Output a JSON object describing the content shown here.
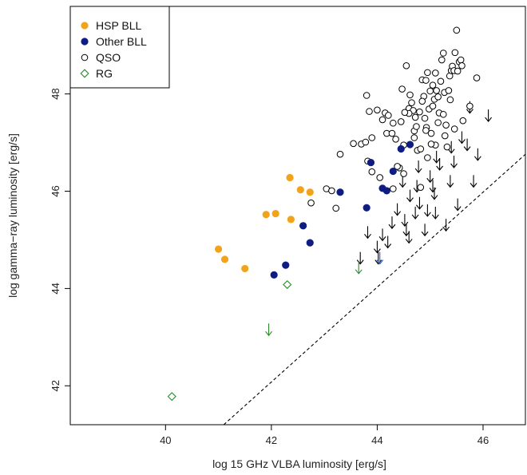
{
  "chart_data": {
    "type": "scatter",
    "xlabel": "log 15 GHz VLBA luminosity [erg/s]",
    "ylabel": "log gamma−ray luminosity [erg/s]",
    "xlim": [
      38.2,
      46.8
    ],
    "ylim": [
      41.2,
      49.8
    ],
    "xticks": [
      40,
      42,
      44,
      46
    ],
    "yticks": [
      42,
      44,
      46,
      48
    ],
    "grid": false,
    "legend_position": "top-left",
    "colors": {
      "hsp": "#f2a31b",
      "other": "#0f1c82",
      "qso": "#000000",
      "rg": "#2b8a2b",
      "dashed": "#000000"
    },
    "legend": [
      {
        "label": "HSP BLL",
        "marker": "filled-circle",
        "color": "#f2a31b"
      },
      {
        "label": "Other BLL",
        "marker": "filled-circle",
        "color": "#0f1c82"
      },
      {
        "label": "QSO",
        "marker": "open-circle",
        "color": "#000000"
      },
      {
        "label": "RG",
        "marker": "open-diamond",
        "color": "#2b8a2b"
      }
    ],
    "series": [
      {
        "name": "HSP BLL",
        "marker": "filled-circle",
        "color": "#f2a31b",
        "points": [
          [
            41.0,
            44.81
          ],
          [
            41.12,
            44.6
          ],
          [
            41.5,
            44.41
          ],
          [
            41.9,
            45.52
          ],
          [
            42.08,
            45.54
          ],
          [
            42.35,
            46.28
          ],
          [
            42.55,
            46.03
          ],
          [
            42.73,
            45.98
          ],
          [
            42.37,
            45.42
          ]
        ]
      },
      {
        "name": "Other BLL",
        "marker": "filled-circle",
        "color": "#0f1c82",
        "points": [
          [
            42.05,
            44.28
          ],
          [
            42.27,
            44.48
          ],
          [
            42.6,
            45.29
          ],
          [
            42.73,
            44.94
          ],
          [
            43.3,
            45.98
          ],
          [
            43.8,
            45.66
          ],
          [
            43.88,
            46.59
          ],
          [
            44.1,
            46.06
          ],
          [
            44.18,
            46.01
          ],
          [
            44.3,
            46.41
          ],
          [
            44.45,
            46.87
          ],
          [
            44.62,
            46.96
          ]
        ]
      },
      {
        "name": "QSO",
        "marker": "open-circle",
        "color": "#000000",
        "points": [
          [
            42.75,
            45.76
          ],
          [
            43.04,
            46.05
          ],
          [
            43.14,
            46.01
          ],
          [
            43.22,
            45.65
          ],
          [
            43.3,
            46.76
          ],
          [
            43.55,
            46.98
          ],
          [
            43.7,
            46.97
          ],
          [
            43.78,
            47.01
          ],
          [
            43.8,
            47.97
          ],
          [
            43.82,
            46.62
          ],
          [
            43.85,
            47.64
          ],
          [
            43.9,
            46.4
          ],
          [
            44.0,
            47.67
          ],
          [
            44.05,
            46.28
          ],
          [
            44.1,
            47.47
          ],
          [
            44.15,
            47.61
          ],
          [
            44.18,
            47.19
          ],
          [
            44.21,
            47.56
          ],
          [
            44.28,
            47.19
          ],
          [
            44.3,
            46.05
          ],
          [
            44.35,
            47.07
          ],
          [
            44.42,
            46.48
          ],
          [
            44.47,
            48.1
          ],
          [
            44.5,
            46.36
          ],
          [
            44.5,
            46.95
          ],
          [
            44.55,
            48.58
          ],
          [
            44.6,
            47.7
          ],
          [
            44.62,
            47.98
          ],
          [
            44.65,
            47.82
          ],
          [
            44.68,
            47.66
          ],
          [
            44.7,
            47.24
          ],
          [
            44.74,
            47.33
          ],
          [
            44.76,
            46.84
          ],
          [
            44.8,
            47.63
          ],
          [
            44.82,
            46.08
          ],
          [
            44.85,
            48.29
          ],
          [
            44.88,
            47.95
          ],
          [
            44.9,
            47.5
          ],
          [
            44.92,
            48.28
          ],
          [
            44.93,
            47.31
          ],
          [
            44.95,
            48.44
          ],
          [
            44.98,
            47.69
          ],
          [
            45.0,
            48.06
          ],
          [
            45.02,
            47.19
          ],
          [
            45.05,
            47.75
          ],
          [
            45.08,
            47.89
          ],
          [
            45.1,
            48.43
          ],
          [
            45.12,
            48.07
          ],
          [
            45.15,
            47.94
          ],
          [
            45.17,
            47.61
          ],
          [
            45.2,
            48.26
          ],
          [
            45.22,
            48.7
          ],
          [
            45.25,
            48.84
          ],
          [
            45.27,
            48.03
          ],
          [
            45.3,
            47.36
          ],
          [
            45.32,
            46.91
          ],
          [
            45.35,
            48.07
          ],
          [
            45.37,
            48.37
          ],
          [
            45.4,
            48.48
          ],
          [
            45.42,
            48.57
          ],
          [
            45.45,
            48.48
          ],
          [
            45.47,
            48.85
          ],
          [
            45.5,
            49.31
          ],
          [
            45.52,
            48.47
          ],
          [
            45.55,
            48.66
          ],
          [
            45.58,
            48.7
          ],
          [
            45.6,
            48.58
          ],
          [
            45.62,
            47.45
          ],
          [
            45.75,
            47.75
          ],
          [
            45.88,
            48.33
          ],
          [
            44.7,
            47.1
          ],
          [
            44.45,
            47.43
          ],
          [
            44.95,
            46.69
          ],
          [
            45.1,
            46.95
          ],
          [
            44.6,
            47.6
          ],
          [
            44.3,
            47.4
          ],
          [
            44.85,
            47.85
          ],
          [
            45.25,
            47.58
          ],
          [
            45.38,
            47.88
          ],
          [
            45.05,
            48.18
          ],
          [
            44.92,
            47.25
          ],
          [
            44.52,
            47.62
          ],
          [
            44.72,
            47.52
          ],
          [
            45.15,
            47.41
          ],
          [
            45.28,
            47.14
          ],
          [
            45.46,
            47.28
          ],
          [
            44.38,
            46.51
          ],
          [
            44.82,
            46.87
          ],
          [
            45.02,
            46.97
          ],
          [
            43.9,
            47.1
          ]
        ]
      },
      {
        "name": "RG",
        "marker": "open-diamond",
        "color": "#2b8a2b",
        "points": [
          [
            40.12,
            41.78
          ],
          [
            42.3,
            44.08
          ]
        ]
      }
    ],
    "upper_limits": [
      {
        "color": "#000000",
        "points": [
          [
            43.82,
            45.15
          ],
          [
            44.0,
            44.85
          ],
          [
            44.02,
            44.62
          ],
          [
            44.1,
            45.1
          ],
          [
            44.2,
            44.95
          ],
          [
            44.28,
            45.35
          ],
          [
            44.38,
            45.62
          ],
          [
            44.52,
            45.4
          ],
          [
            44.55,
            45.2
          ],
          [
            44.6,
            45.05
          ],
          [
            44.62,
            45.9
          ],
          [
            44.72,
            45.55
          ],
          [
            44.75,
            46.1
          ],
          [
            44.8,
            45.75
          ],
          [
            44.9,
            45.2
          ],
          [
            44.95,
            45.6
          ],
          [
            45.0,
            46.3
          ],
          [
            45.05,
            46.1
          ],
          [
            45.08,
            45.95
          ],
          [
            45.1,
            45.55
          ],
          [
            45.12,
            46.7
          ],
          [
            45.18,
            46.55
          ],
          [
            45.3,
            45.3
          ],
          [
            45.4,
            46.9
          ],
          [
            45.45,
            46.6
          ],
          [
            45.52,
            45.72
          ],
          [
            45.6,
            47.1
          ],
          [
            45.7,
            46.95
          ],
          [
            45.82,
            46.2
          ],
          [
            45.9,
            46.75
          ],
          [
            46.1,
            47.55
          ],
          [
            45.75,
            47.72
          ],
          [
            45.38,
            46.2
          ],
          [
            44.48,
            46.2
          ],
          [
            43.68,
            44.62
          ],
          [
            44.78,
            46.5
          ]
        ]
      },
      {
        "color": "#2b5fcc",
        "points": [
          [
            44.05,
            44.62
          ]
        ]
      },
      {
        "color": "#2b8a2b",
        "points": [
          [
            41.95,
            43.15
          ],
          [
            43.65,
            44.42
          ]
        ]
      }
    ],
    "reference_line": {
      "style": "dashed",
      "points": [
        [
          41.1,
          41.2
        ],
        [
          46.8,
          46.76
        ]
      ]
    }
  }
}
